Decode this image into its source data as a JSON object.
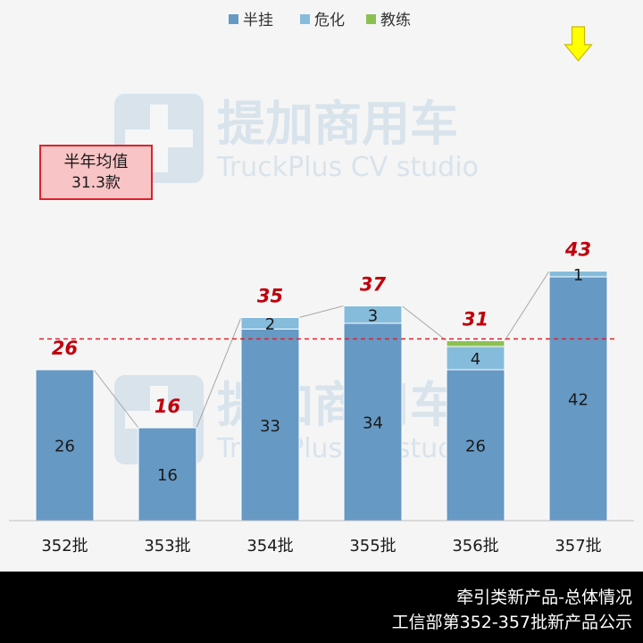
{
  "chart_data": {
    "type": "bar",
    "stacked": true,
    "categories": [
      "352批",
      "353批",
      "354批",
      "355批",
      "356批",
      "357批"
    ],
    "series": [
      {
        "name": "半挂",
        "color": "#6699c4",
        "values": [
          26,
          16,
          33,
          34,
          26,
          42
        ]
      },
      {
        "name": "危化",
        "color": "#86bcdb",
        "values": [
          0,
          0,
          2,
          3,
          4,
          1
        ]
      },
      {
        "name": "教练",
        "color": "#8cc152",
        "values": [
          0,
          0,
          0,
          0,
          1,
          0
        ]
      }
    ],
    "totals": [
      26,
      16,
      35,
      37,
      31,
      43
    ],
    "legend_position": "top",
    "reference_line": {
      "value": 31.3,
      "color": "#e0202a"
    },
    "ylim": [
      0,
      50
    ],
    "grid": false,
    "highlight_marker": {
      "category": "357批",
      "icon": "yellow-down-arrow-icon",
      "color": "#ffff00"
    }
  },
  "average_box": {
    "title": "半年均值",
    "value": "31.3款"
  },
  "footer": {
    "line1": "牵引类新产品-总体情况",
    "line2": "工信部第352-357批新产品公示"
  },
  "watermark": {
    "brand": "提加商用车",
    "sub": "TruckPlus CV studio"
  },
  "colors": {
    "total_label": "#c0000c",
    "connector": "#a6a6a6",
    "axis": "#bfbfbf"
  }
}
